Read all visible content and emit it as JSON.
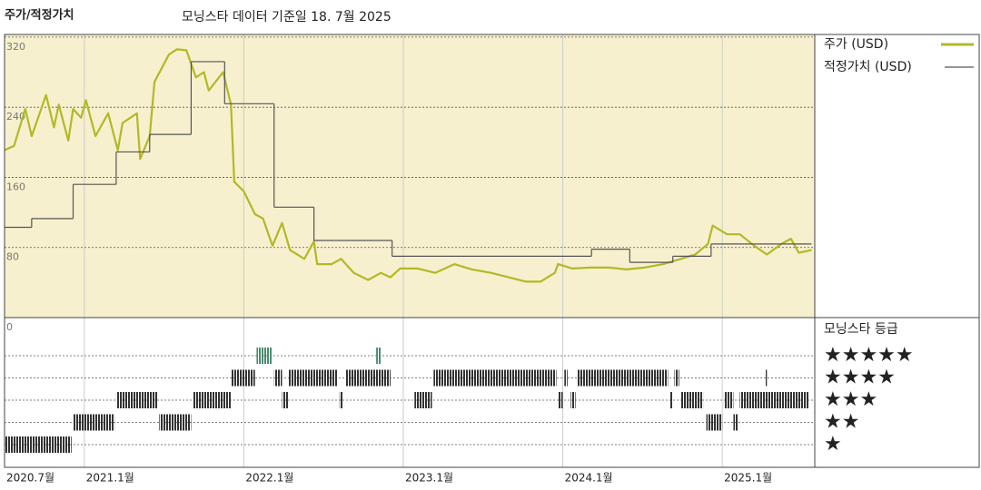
{
  "chart_data": {
    "type": "line",
    "title": "주가/적정가치",
    "subtitle": "모닝스타 데이터 기준일 18. 7월 2025",
    "xlim": [
      2020.5,
      2025.58
    ],
    "xticks": [
      {
        "value": 2020.5,
        "label": "2020.7월"
      },
      {
        "value": 2021,
        "label": "2021.1월"
      },
      {
        "value": 2022,
        "label": "2022.1월"
      },
      {
        "value": 2023,
        "label": "2023.1월"
      },
      {
        "value": 2024,
        "label": "2024.1월"
      },
      {
        "value": 2025,
        "label": "2025.1월"
      }
    ],
    "ylim": [
      0,
      323
    ],
    "yticks": [
      0,
      80,
      160,
      240,
      320
    ],
    "grid": true,
    "background": "#f6f0cf",
    "series": [
      {
        "name": "주가 (USD)",
        "color": "#b3b826",
        "x": [
          2020.5,
          2020.56,
          2020.63,
          2020.67,
          2020.76,
          2020.81,
          2020.84,
          2020.9,
          2020.93,
          2020.98,
          2021.01,
          2021.07,
          2021.15,
          2021.21,
          2021.24,
          2021.33,
          2021.35,
          2021.41,
          2021.44,
          2021.53,
          2021.58,
          2021.64,
          2021.7,
          2021.75,
          2021.78,
          2021.87,
          2021.92,
          2021.94,
          2022.0,
          2022.07,
          2022.12,
          2022.18,
          2022.24,
          2022.29,
          2022.38,
          2022.44,
          2022.46,
          2022.55,
          2022.61,
          2022.69,
          2022.78,
          2022.86,
          2022.92,
          2022.98,
          2023.09,
          2023.2,
          2023.32,
          2023.43,
          2023.55,
          2023.66,
          2023.77,
          2023.86,
          2023.95,
          2023.97,
          2024.06,
          2024.17,
          2024.29,
          2024.4,
          2024.51,
          2024.63,
          2024.74,
          2024.83,
          2024.91,
          2024.94,
          2025.03,
          2025.11,
          2025.2,
          2025.28,
          2025.37,
          2025.43,
          2025.48,
          2025.56
        ],
        "values": [
          191,
          196,
          238,
          207,
          254,
          217,
          243,
          202,
          238,
          228,
          248,
          207,
          233,
          191,
          222,
          233,
          181,
          207,
          269,
          300,
          306,
          305,
          274,
          280,
          259,
          280,
          243,
          155,
          144,
          118,
          113,
          82,
          108,
          77,
          67,
          87,
          61,
          61,
          67,
          51,
          43,
          51,
          46,
          56,
          56,
          51,
          61,
          55,
          51,
          46,
          41,
          41,
          51,
          61,
          56,
          57,
          57,
          55,
          57,
          61,
          67,
          72,
          84,
          105,
          95,
          95,
          82,
          72,
          84,
          90,
          74,
          77
        ]
      },
      {
        "name": "적정가치 (USD)",
        "color": "#555555",
        "step": true,
        "x": [
          2020.5,
          2020.67,
          2020.93,
          2021.2,
          2021.41,
          2021.67,
          2021.88,
          2022.19,
          2022.44,
          2022.93,
          2024.18,
          2024.42,
          2024.69,
          2024.93,
          2025.56
        ],
        "values": [
          103,
          113,
          152,
          189,
          209,
          292,
          244,
          126,
          88,
          70,
          78,
          63,
          70,
          84,
          84
        ]
      }
    ],
    "ratings": {
      "title": "모닝스타 등급",
      "labels": [
        "★",
        "★★",
        "★★★",
        "★★★★",
        "★★★★★"
      ],
      "colors": [
        "#333333",
        "#333333",
        "#333333",
        "#333333",
        "#4a8a6e"
      ],
      "periods": [
        {
          "x0": 2020.5,
          "x1": 2020.92,
          "stars": 1
        },
        {
          "x0": 2020.93,
          "x1": 2021.19,
          "stars": 2
        },
        {
          "x0": 2021.2,
          "x1": 2021.46,
          "stars": 3
        },
        {
          "x0": 2021.47,
          "x1": 2021.67,
          "stars": 2
        },
        {
          "x0": 2021.68,
          "x1": 2021.92,
          "stars": 3
        },
        {
          "x0": 2021.92,
          "x1": 2022.07,
          "stars": 4
        },
        {
          "x0": 2022.08,
          "x1": 2022.18,
          "stars": 5
        },
        {
          "x0": 2022.19,
          "x1": 2022.24,
          "stars": 4
        },
        {
          "x0": 2022.24,
          "x1": 2022.28,
          "stars": 3
        },
        {
          "x0": 2022.28,
          "x1": 2022.59,
          "stars": 4
        },
        {
          "x0": 2022.6,
          "x1": 2022.62,
          "stars": 3
        },
        {
          "x0": 2022.64,
          "x1": 2022.92,
          "stars": 4
        },
        {
          "x0": 2022.83,
          "x1": 2022.86,
          "stars": 5
        },
        {
          "x0": 2023.07,
          "x1": 2023.18,
          "stars": 3
        },
        {
          "x0": 2023.19,
          "x1": 2023.96,
          "stars": 4
        },
        {
          "x0": 2023.97,
          "x1": 2024.0,
          "stars": 3
        },
        {
          "x0": 2024.01,
          "x1": 2024.03,
          "stars": 4
        },
        {
          "x0": 2024.05,
          "x1": 2024.08,
          "stars": 3
        },
        {
          "x0": 2024.09,
          "x1": 2024.66,
          "stars": 4
        },
        {
          "x0": 2024.67,
          "x1": 2024.69,
          "stars": 3
        },
        {
          "x0": 2024.7,
          "x1": 2024.73,
          "stars": 4
        },
        {
          "x0": 2024.74,
          "x1": 2024.88,
          "stars": 3
        },
        {
          "x0": 2024.9,
          "x1": 2025.0,
          "stars": 2
        },
        {
          "x0": 2025.01,
          "x1": 2025.07,
          "stars": 3
        },
        {
          "x0": 2025.07,
          "x1": 2025.1,
          "stars": 2
        },
        {
          "x0": 2025.11,
          "x1": 2025.54,
          "stars": 3
        },
        {
          "x0": 2025.27,
          "x1": 2025.28,
          "stars": 4
        }
      ]
    }
  }
}
